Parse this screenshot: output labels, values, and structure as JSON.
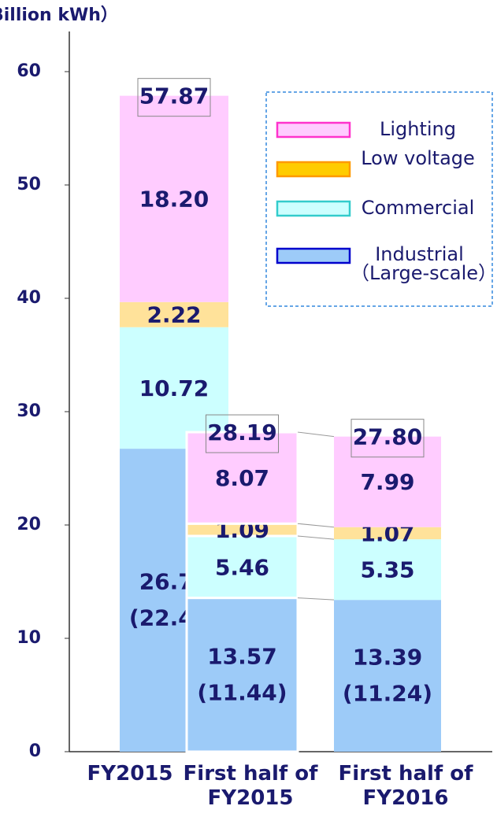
{
  "chart_data": {
    "type": "stacked_bar",
    "y_axis_label": "Billion kWh）",
    "categories": [
      "FY2015",
      "First half of FY2015",
      "First half of FY2016"
    ],
    "series": [
      {
        "name": "Industrial（Large-scale）",
        "color": "#9dcbf8",
        "edge_color": "#0000cc",
        "values": [
          26.73,
          13.57,
          13.39
        ],
        "sub_labels": [
          "(22.48)",
          "(11.44)",
          "(11.24)"
        ]
      },
      {
        "name": "Commercial",
        "color": "#ccffff",
        "edge_color": "#33cccc",
        "values": [
          10.72,
          5.46,
          5.35
        ]
      },
      {
        "name": "Low voltage",
        "color": "#ffe29a",
        "edge_color": "#ff9900",
        "legend_fill": "#ffcc00",
        "values": [
          2.22,
          1.09,
          1.07
        ]
      },
      {
        "name": "Lighting",
        "color": "#ffccff",
        "edge_color": "#ff33cc",
        "values": [
          18.2,
          8.07,
          7.99
        ],
        "value_labels": [
          "18.20",
          "8.07",
          "7.99"
        ]
      }
    ],
    "totals": [
      57.87,
      28.19,
      27.8
    ],
    "total_labels": [
      "57.87",
      "28.19",
      "27.80"
    ],
    "ylim": [
      0,
      60
    ],
    "yticks": [
      0,
      10,
      20,
      30,
      40,
      50,
      60
    ],
    "grid": false
  }
}
